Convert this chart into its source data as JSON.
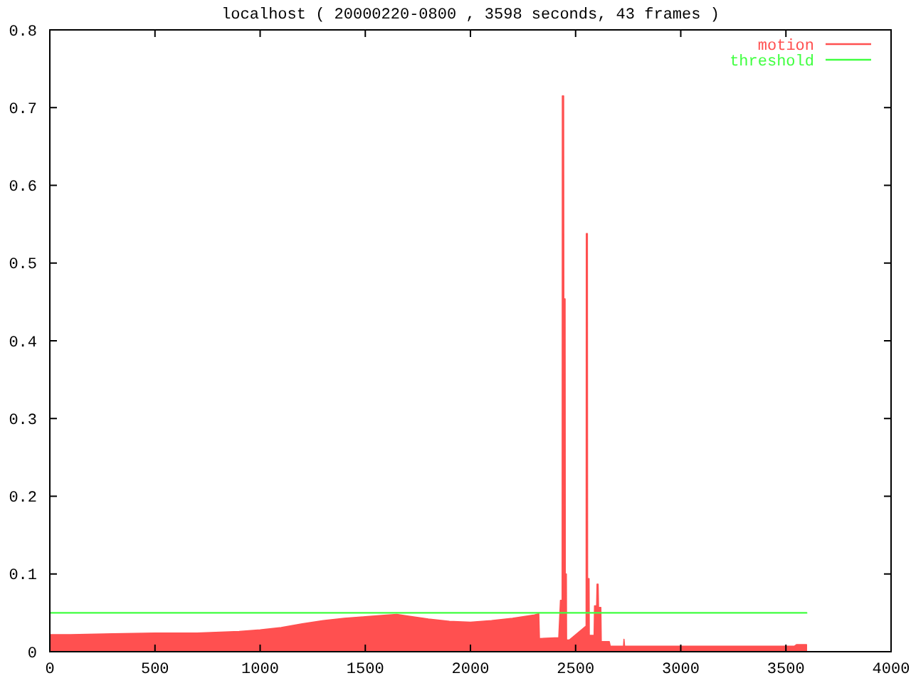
{
  "chart_data": {
    "type": "area",
    "title": "localhost ( 20000220-0800 , 3598 seconds, 43 frames )",
    "xlim": [
      0,
      4000
    ],
    "xticks": [
      0,
      500,
      1000,
      1500,
      2000,
      2500,
      3000,
      3500,
      4000
    ],
    "ylim": [
      0,
      0.8
    ],
    "yticks": [
      0,
      0.1,
      0.2,
      0.3,
      0.4,
      0.5,
      0.6,
      0.7,
      0.8
    ],
    "legend": "top right",
    "series": [
      {
        "name": "motion",
        "color": "#ff5050",
        "x": [
          0,
          100,
          300,
          500,
          700,
          900,
          1000,
          1100,
          1200,
          1300,
          1400,
          1500,
          1600,
          1650,
          1700,
          1800,
          1900,
          2000,
          2100,
          2200,
          2300,
          2325,
          2328,
          2420,
          2428,
          2436,
          2437,
          2443,
          2444,
          2450,
          2451,
          2456,
          2457,
          2470,
          2550,
          2551,
          2556,
          2557,
          2564,
          2565,
          2588,
          2590,
          2600,
          2602,
          2607,
          2609,
          2620,
          2622,
          2660,
          2665,
          2728,
          2730,
          2733,
          3000,
          3300,
          3540,
          3550,
          3598
        ],
        "values": [
          0.022,
          0.022,
          0.023,
          0.024,
          0.024,
          0.026,
          0.028,
          0.031,
          0.036,
          0.04,
          0.043,
          0.045,
          0.047,
          0.048,
          0.046,
          0.042,
          0.039,
          0.038,
          0.04,
          0.043,
          0.047,
          0.049,
          0.017,
          0.018,
          0.066,
          0.066,
          0.715,
          0.715,
          0.454,
          0.454,
          0.1,
          0.1,
          0.015,
          0.015,
          0.033,
          0.538,
          0.538,
          0.094,
          0.094,
          0.021,
          0.021,
          0.059,
          0.059,
          0.087,
          0.087,
          0.057,
          0.057,
          0.013,
          0.013,
          0.007,
          0.007,
          0.016,
          0.007,
          0.007,
          0.007,
          0.007,
          0.009,
          0.009
        ]
      },
      {
        "name": "threshold",
        "type": "line",
        "color": "#40ff40",
        "x": [
          0,
          3598
        ],
        "values": [
          0.05,
          0.05
        ]
      }
    ]
  }
}
